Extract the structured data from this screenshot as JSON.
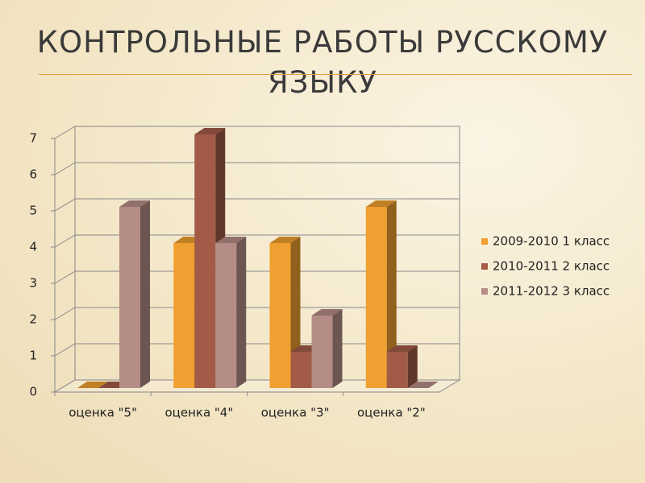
{
  "chart_data": {
    "type": "bar3d",
    "title": "КОНТРОЛЬНЫЕ РАБОТЫ РУССКОМУ ЯЗЫКУ",
    "categories": [
      "оценка \"5\"",
      "оценка \"4\"",
      "оценка \"3\"",
      "оценка \"2\""
    ],
    "series": [
      {
        "name": "2009-2010 1 класс",
        "color": "#f0a030",
        "values": [
          0,
          4,
          4,
          5
        ]
      },
      {
        "name": "2010-2011 2 класс",
        "color": "#a35b48",
        "values": [
          0,
          7,
          1,
          1
        ]
      },
      {
        "name": "2011-2012 3 класс",
        "color": "#b58d87",
        "values": [
          5,
          4,
          2,
          0
        ]
      }
    ],
    "ylim": [
      0,
      7
    ],
    "yticks": [
      0,
      1,
      2,
      3,
      4,
      5,
      6,
      7
    ],
    "grid": true,
    "legend": "right"
  }
}
